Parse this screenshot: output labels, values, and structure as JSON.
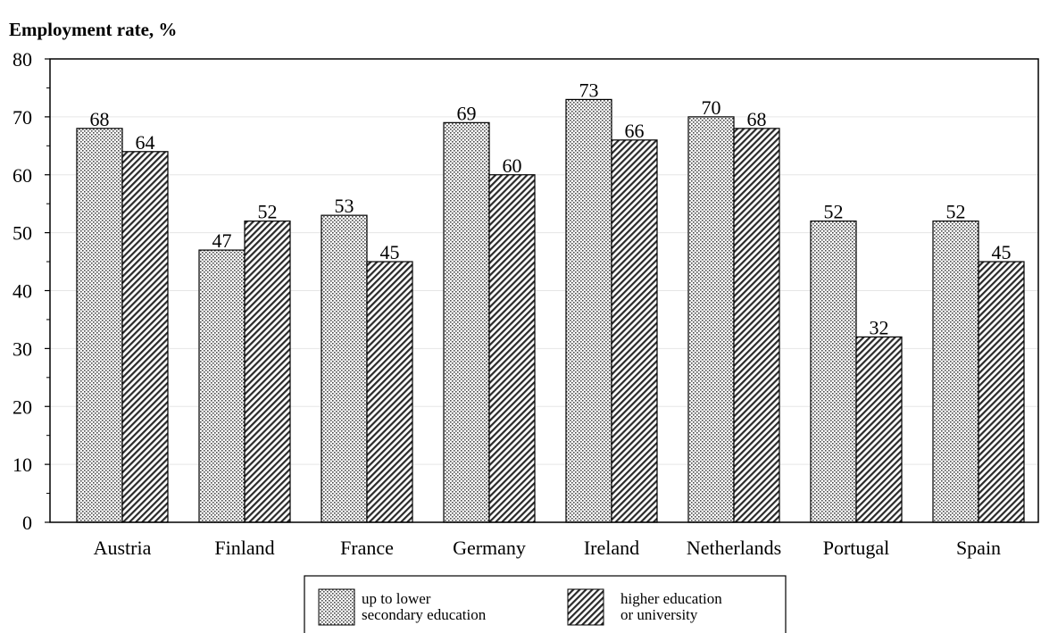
{
  "chart_data": {
    "type": "bar",
    "ylabel": "Employment rate, %",
    "xlabel": "",
    "ylim": [
      0,
      80
    ],
    "yticks": [
      0,
      10,
      20,
      30,
      40,
      50,
      60,
      70,
      80
    ],
    "grid": true,
    "legend_position": "bottom",
    "categories": [
      "Austria",
      "Finland",
      "France",
      "Germany",
      "Ireland",
      "Netherlands",
      "Portugal",
      "Spain"
    ],
    "series": [
      {
        "name": "up to lower secondary education",
        "name_lines": [
          "up to lower",
          "secondary education"
        ],
        "pattern": "dots",
        "values": [
          68,
          47,
          53,
          69,
          73,
          70,
          52,
          52
        ]
      },
      {
        "name": "higher education or university",
        "name_lines": [
          "higher education",
          "or university"
        ],
        "pattern": "hatch",
        "values": [
          64,
          52,
          45,
          60,
          66,
          68,
          32,
          45
        ]
      }
    ]
  }
}
